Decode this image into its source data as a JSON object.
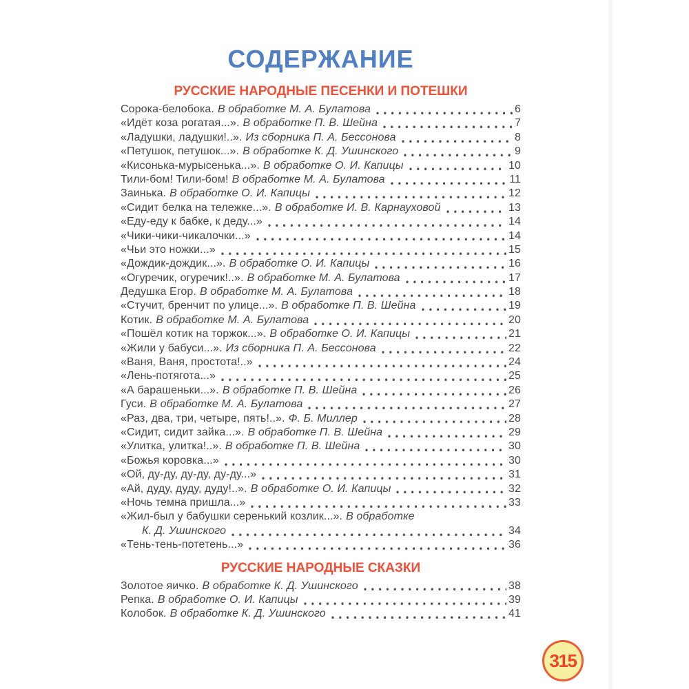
{
  "title": "СОДЕРЖАНИЕ",
  "page_badge": "315",
  "colors": {
    "title_blue": "#5080c3",
    "heading_red": "#f04f38",
    "body_text": "#474747",
    "badge_fill": "#f6f0a0",
    "badge_border": "#ee5a34",
    "badge_text": "#ee4424"
  },
  "sections": [
    {
      "heading": "РУССКИЕ НАРОДНЫЕ ПЕСЕНКИ И ПОТЕШКИ",
      "entries": [
        {
          "title": "Сорока-белобока.",
          "annotation": "В обработке М. А. Булатова",
          "page": "6"
        },
        {
          "title": "«Идёт коза рогатая...».",
          "annotation": "В обработке П. В. Шейна",
          "page": "7"
        },
        {
          "title": "«Ладушки, ладушки!..».",
          "annotation": "Из сборника П. А. Бессонова",
          "page": "8"
        },
        {
          "title": "«Петушок, петушок...».",
          "annotation": "В обработке К. Д. Ушинского",
          "page": "9"
        },
        {
          "title": "«Кисонька-мурысенька...».",
          "annotation": "В обработке О. И. Капицы",
          "page": "10"
        },
        {
          "title": "Тили-бом! Тили-бом!",
          "annotation": "В обработке М. А. Булатова",
          "page": "11"
        },
        {
          "title": "Заинька.",
          "annotation": "В обработке О. И. Капицы",
          "page": "12"
        },
        {
          "title": "«Сидит белка на тележке...».",
          "annotation": "В обработке И. В. Карнауховой",
          "page": "13"
        },
        {
          "title": "«Еду-еду к бабке, к деду...»",
          "page": "14"
        },
        {
          "title": "«Чики-чики-чикалочки...»",
          "page": "14"
        },
        {
          "title": "«Чьи это ножки...»",
          "page": "15"
        },
        {
          "title": "«Дождик-дождик...».",
          "annotation": "В обработке О. И. Капицы",
          "page": "16"
        },
        {
          "title": "«Огуречик, огуречик!..».",
          "annotation": "В обработке М. А. Булатова",
          "page": "17"
        },
        {
          "title": "Дедушка Егор.",
          "annotation": "В обработке М. А. Булатова",
          "page": "18"
        },
        {
          "title": "«Стучит, бренчит по улице...».",
          "annotation": "В обработке П. В. Шейна",
          "page": "19"
        },
        {
          "title": "Котик.",
          "annotation": "В обработке М. А. Булатова",
          "page": "20"
        },
        {
          "title": "«Пошёл котик на торжок...».",
          "annotation": "В обработке О. И. Капицы",
          "page": "21"
        },
        {
          "title": "«Жили у бабуси...».",
          "annotation": "Из сборника П. А. Бессонова",
          "page": "22"
        },
        {
          "title": "«Ваня, Ваня, простота!..»",
          "page": "24"
        },
        {
          "title": "«Лень-потягота...»",
          "page": "25"
        },
        {
          "title": "«А барашеньки...».",
          "annotation": "В обработке П. В. Шейна",
          "page": "26"
        },
        {
          "title": "Гуси.",
          "annotation": "В обработке М. А. Булатова",
          "page": "27"
        },
        {
          "title": "«Раз, два, три, четыре, пять!..».",
          "annotation": "Ф. Б. Миллер",
          "page": "28"
        },
        {
          "title": "«Сидит, сидит зайка...».",
          "annotation": "В обработке П. В. Шейна",
          "page": "29"
        },
        {
          "title": "«Улитка, улитка!..».",
          "annotation": "В обработке П. В. Шейна",
          "page": "30"
        },
        {
          "title": "«Божья коровка...»",
          "page": "30"
        },
        {
          "title": "«Ой, ду-ду, ду-ду, ду-ду...»",
          "page": "31"
        },
        {
          "title": "«Ай, дуду, дуду, дуду!..».",
          "annotation": "В обработке О. И. Капицы",
          "page": "32"
        },
        {
          "title": "«Ночь темна пришла...»",
          "page": "33"
        },
        {
          "title": "«Жил-был у бабушки серенький козлик...».",
          "annotation": "В обработке",
          "continuation": "К. Д. Ушинского",
          "page": "34"
        },
        {
          "title": "«Тень-тень-потетень...»",
          "page": "36"
        }
      ]
    },
    {
      "heading": "РУССКИЕ НАРОДНЫЕ СКАЗКИ",
      "entries": [
        {
          "title": "Золотое яичко.",
          "annotation": "В обработке К. Д. Ушинского",
          "page": "38"
        },
        {
          "title": "Репка.",
          "annotation": "В обработке О. И. Капицы",
          "page": "39"
        },
        {
          "title": "Колобок.",
          "annotation": "В обработке К. Д. Ушинского",
          "page": "41"
        }
      ]
    }
  ]
}
